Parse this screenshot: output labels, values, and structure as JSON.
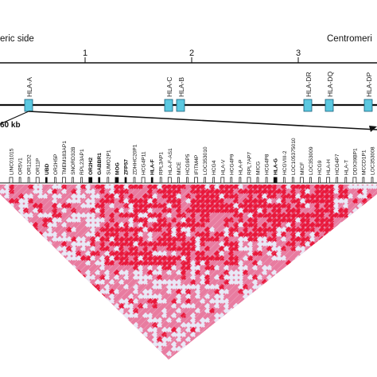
{
  "header": {
    "left_label": "eric side",
    "right_label": "Centromeri"
  },
  "axis": {
    "ticks": [
      {
        "label": "1",
        "value": 1
      },
      {
        "label": "2",
        "value": 2
      },
      {
        "label": "3",
        "value": 3
      }
    ]
  },
  "hla_genes": [
    {
      "label": "HLA-A"
    },
    {
      "label": "HLA-C"
    },
    {
      "label": "HLA-B"
    },
    {
      "label": "HLA-DR"
    },
    {
      "label": "HLA-DQ"
    },
    {
      "label": "HLA-DP"
    }
  ],
  "scale": {
    "label": "60 kb"
  },
  "track_genes": [
    {
      "label": "LINC01015",
      "bold": false
    },
    {
      "label": "OR5V1",
      "bold": false
    },
    {
      "label": "OR12D2",
      "bold": false
    },
    {
      "label": "OR11P",
      "bold": false
    },
    {
      "label": "UBD",
      "bold": true
    },
    {
      "label": "OR2H5P",
      "bold": false
    },
    {
      "label": "TMEM183AP1",
      "bold": false
    },
    {
      "label": "SNORD32B",
      "bold": false
    },
    {
      "label": "RPL23AP1",
      "bold": false
    },
    {
      "label": "OR2H2",
      "bold": true
    },
    {
      "label": "GABBR1",
      "bold": true
    },
    {
      "label": "SUMO2P1",
      "bold": false
    },
    {
      "label": "MOG",
      "bold": true
    },
    {
      "label": "ZFP57",
      "bold": true
    },
    {
      "label": "ZDHHC20P1",
      "bold": false
    },
    {
      "label": "HCG4P11",
      "bold": false
    },
    {
      "label": "HLA-F",
      "bold": true
    },
    {
      "label": "RPL3AP1",
      "bold": false
    },
    {
      "label": "HLA-F-AS1",
      "bold": false
    },
    {
      "label": "MICE",
      "bold": false
    },
    {
      "label": "HCG9P5",
      "bold": false
    },
    {
      "label": "IFITM4P",
      "bold": false
    },
    {
      "label": "LOC353010",
      "bold": false
    },
    {
      "label": "HCG4",
      "bold": false
    },
    {
      "label": "HLA-V",
      "bold": false
    },
    {
      "label": "HCG4P9",
      "bold": false
    },
    {
      "label": "HLA-P",
      "bold": false
    },
    {
      "label": "RPL7AP7",
      "bold": false
    },
    {
      "label": "MICG",
      "bold": false
    },
    {
      "label": "HCG4P8",
      "bold": false
    },
    {
      "label": "HLA-G",
      "bold": true
    },
    {
      "label": "HCGVIII-2",
      "bold": false
    },
    {
      "label": "LOC105375010",
      "bold": false
    },
    {
      "label": "MICF",
      "bold": false
    },
    {
      "label": "LOC353009",
      "bold": false
    },
    {
      "label": "HCG9",
      "bold": false
    },
    {
      "label": "HLA-H",
      "bold": false
    },
    {
      "label": "HCG4P7",
      "bold": false
    },
    {
      "label": "HLA-T",
      "bold": false
    },
    {
      "label": "DDX39BP1",
      "bold": false
    },
    {
      "label": "MCCD1P1",
      "bold": false
    },
    {
      "label": "LOC353008",
      "bold": false
    }
  ],
  "colors": {
    "axis": "#111111",
    "gene_box": "#5bc8e0",
    "gene_box_stroke": "#1a5f7a",
    "ld_high": "#e8193c",
    "ld_mid": "#e87ca0",
    "ld_low": "#e8e8f6"
  }
}
